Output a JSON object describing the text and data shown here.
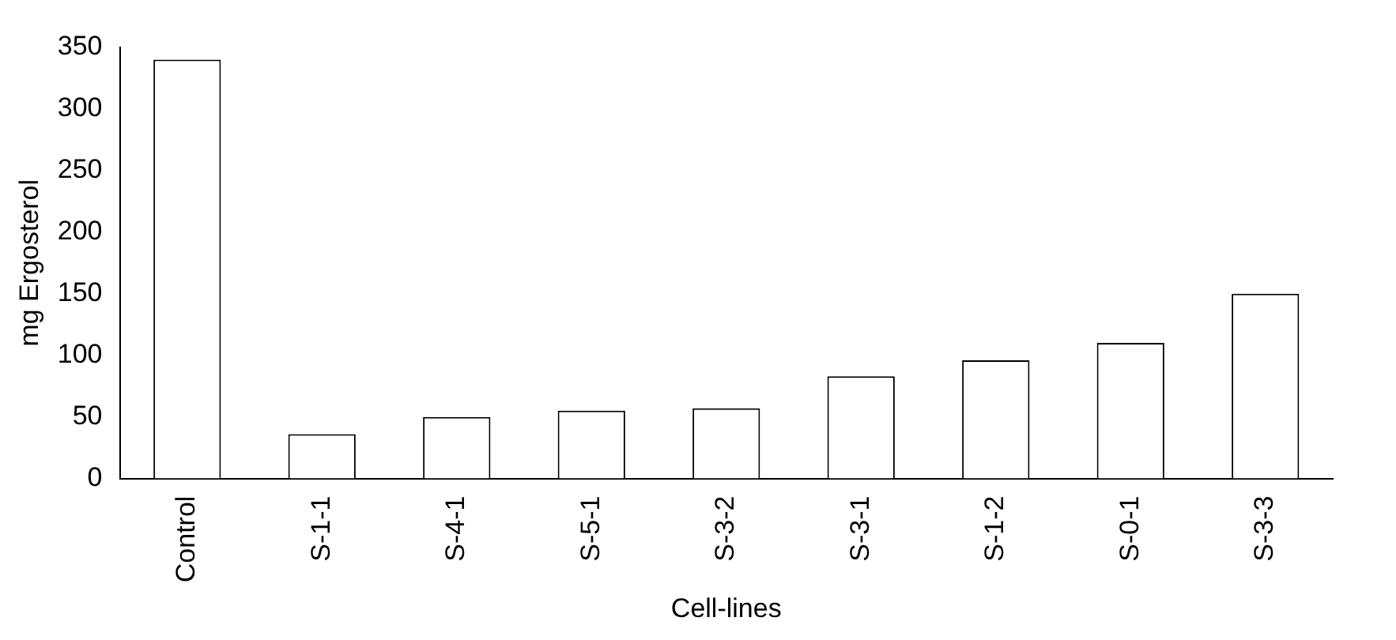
{
  "chart_data": {
    "type": "bar",
    "xlabel": "Cell-lines",
    "ylabel": "mg Ergosterol",
    "categories": [
      "Control",
      "S-1-1",
      "S-4-1",
      "S-5-1",
      "S-3-2",
      "S-3-1",
      "S-1-2",
      "S-0-1",
      "S-3-3"
    ],
    "values": [
      340,
      36,
      50,
      55,
      57,
      83,
      96,
      110,
      150
    ],
    "color": "#ffffff",
    "ylim": [
      0,
      350
    ],
    "yticks": [
      0,
      50,
      100,
      150,
      200,
      250,
      300,
      350
    ],
    "grid": false,
    "legend": false
  }
}
